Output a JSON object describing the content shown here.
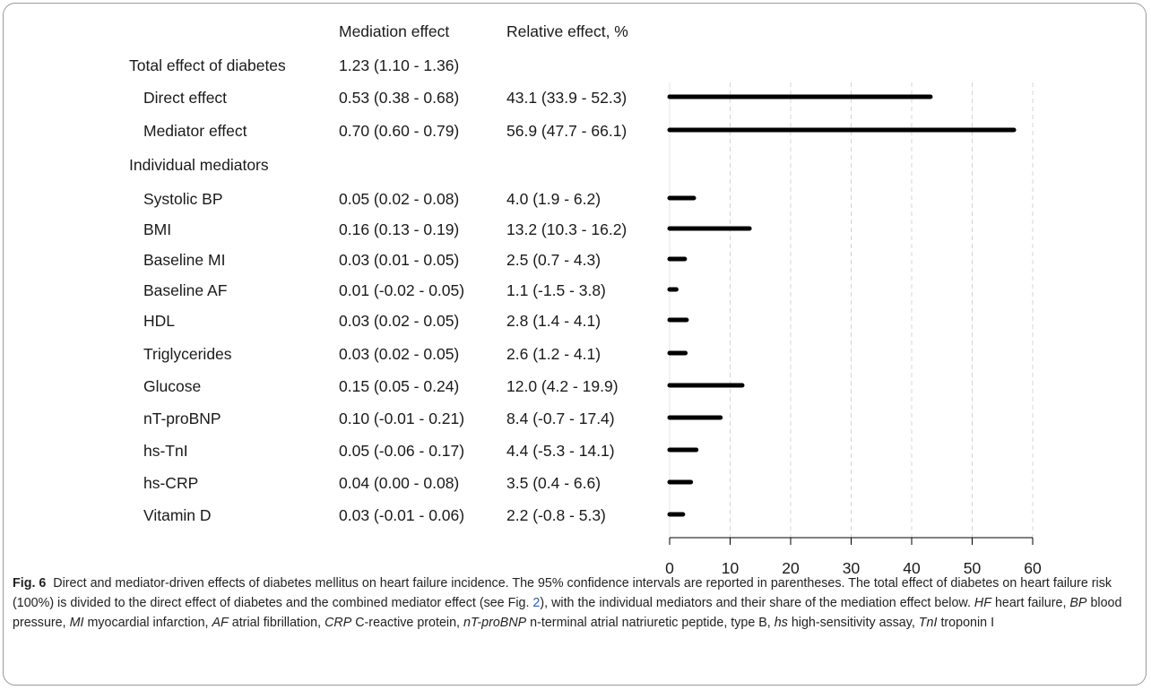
{
  "table": {
    "col_mediation": "Mediation effect",
    "col_relative": "Relative effect, %",
    "total_label": "Total effect of diabetes",
    "total_value": "1.23 (1.10 - 1.36)",
    "group_label": "Individual mediators",
    "rows": [
      {
        "label": "Direct effect",
        "mediation": "0.53 (0.38 - 0.68)",
        "relative": "43.1 (33.9 - 52.3)"
      },
      {
        "label": "Mediator effect",
        "mediation": "0.70 (0.60 - 0.79)",
        "relative": "56.9 (47.7 - 66.1)"
      },
      {
        "label": "Systolic BP",
        "mediation": "0.05 (0.02 - 0.08)",
        "relative": "4.0 (1.9 - 6.2)"
      },
      {
        "label": "BMI",
        "mediation": "0.16 (0.13 - 0.19)",
        "relative": "13.2 (10.3 - 16.2)"
      },
      {
        "label": "Baseline MI",
        "mediation": "0.03 (0.01 - 0.05)",
        "relative": "2.5 (0.7 - 4.3)"
      },
      {
        "label": "Baseline AF",
        "mediation": "0.01 (-0.02 - 0.05)",
        "relative": "1.1 (-1.5 - 3.8)"
      },
      {
        "label": "HDL",
        "mediation": "0.03 (0.02 - 0.05)",
        "relative": "2.8 (1.4 - 4.1)"
      },
      {
        "label": "Triglycerides",
        "mediation": "0.03 (0.02 - 0.05)",
        "relative": "2.6 (1.2 - 4.1)"
      },
      {
        "label": "Glucose",
        "mediation": "0.15 (0.05 - 0.24)",
        "relative": "12.0 (4.2 - 19.9)"
      },
      {
        "label": "nT-proBNP",
        "mediation": "0.10 (-0.01 - 0.21)",
        "relative": "8.4 (-0.7 - 17.4)"
      },
      {
        "label": "hs-TnI",
        "mediation": "0.05 (-0.06 - 0.17)",
        "relative": "4.4 (-5.3 - 14.1)"
      },
      {
        "label": "hs-CRP",
        "mediation": "0.04 (0.00 - 0.08)",
        "relative": "3.5 (0.4 - 6.6)"
      },
      {
        "label": "Vitamin D",
        "mediation": "0.03 (-0.01 - 0.06)",
        "relative": "2.2 (-0.8 - 5.3)"
      }
    ]
  },
  "chart_data": {
    "type": "bar",
    "orientation": "horizontal",
    "categories": [
      "Direct effect",
      "Mediator effect",
      "Systolic BP",
      "BMI",
      "Baseline MI",
      "Baseline AF",
      "HDL",
      "Triglycerides",
      "Glucose",
      "nT-proBNP",
      "hs-TnI",
      "hs-CRP",
      "Vitamin D"
    ],
    "values": [
      43.1,
      56.9,
      4.0,
      13.2,
      2.5,
      1.1,
      2.8,
      2.6,
      12.0,
      8.4,
      4.4,
      3.5,
      2.2
    ],
    "xlim": [
      0,
      60
    ],
    "xticks": [
      0,
      10,
      20,
      30,
      40,
      50,
      60
    ],
    "xtick_labels": [
      "0",
      "10",
      "20",
      "30",
      "40",
      "50",
      "60"
    ],
    "grid": "vertical dashed",
    "bar_color": "#000000"
  },
  "caption": {
    "fig_label": "Fig. 6",
    "text_1": "Direct and mediator-driven effects of diabetes mellitus on heart failure incidence. The 95% confidence intervals are reported in parentheses. The total effect of diabetes on heart failure risk (100%) is divided to the direct effect of diabetes and the combined mediator effect (see Fig. ",
    "fig_ref": "2",
    "text_2": "), with the individual mediators and their share of the mediation effect below. ",
    "abbreviations": [
      {
        "abbr": "HF",
        "meaning": "heart failure"
      },
      {
        "abbr": "BP",
        "meaning": "blood pressure"
      },
      {
        "abbr": "MI",
        "meaning": "myocardial infarction"
      },
      {
        "abbr": "AF",
        "meaning": "atrial fibrillation"
      },
      {
        "abbr": "CRP",
        "meaning": "C-reactive protein"
      },
      {
        "abbr": "nT-proBNP",
        "meaning": "n-terminal atrial natriuretic peptide, type B"
      },
      {
        "abbr": "hs",
        "meaning": "high-sensitivity assay"
      },
      {
        "abbr": "TnI",
        "meaning": "troponin I"
      }
    ]
  }
}
